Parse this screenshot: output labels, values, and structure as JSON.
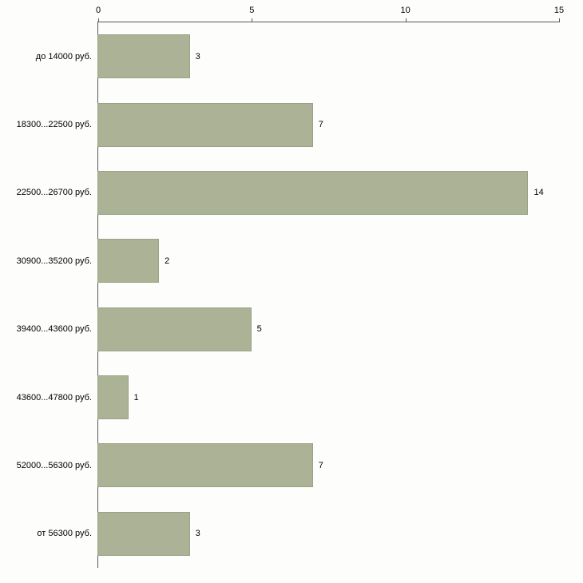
{
  "chart_data": {
    "type": "bar",
    "orientation": "horizontal",
    "title": "",
    "xlabel": "",
    "ylabel": "",
    "categories": [
      "до 14000 руб.",
      "18300...22500 руб.",
      "22500...26700 руб.",
      "30900...35200 руб.",
      "39400...43600 руб.",
      "43600...47800 руб.",
      "52000...56300 руб.",
      "от 56300 руб."
    ],
    "values": [
      3,
      7,
      14,
      2,
      5,
      1,
      7,
      3
    ],
    "xlim": [
      0,
      15
    ],
    "x_ticks": [
      "0",
      "5",
      "10",
      "15"
    ],
    "grid": false,
    "legend_position": "none",
    "bar_color": "#abb295",
    "bar_border_color": "#9aa285",
    "axis_color": "#595959",
    "text_color": "#000000"
  }
}
